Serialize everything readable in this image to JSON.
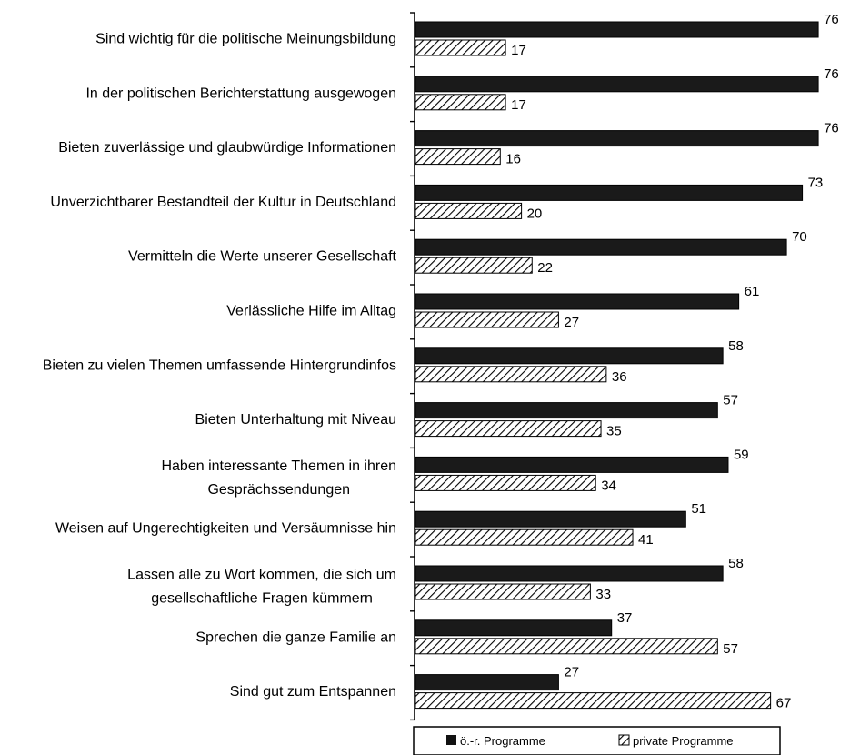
{
  "chart_data": {
    "type": "bar",
    "orientation": "horizontal",
    "categories": [
      [
        "Sind wichtig für die politische Meinungsbildung"
      ],
      [
        "In der politischen Berichterstattung ausgewogen"
      ],
      [
        "Bieten zuverlässige und glaubwürdige Informationen"
      ],
      [
        "Unverzichtbarer Bestandteil der Kultur in Deutschland"
      ],
      [
        "Vermitteln die Werte unserer Gesellschaft"
      ],
      [
        "Verlässliche Hilfe im Alltag"
      ],
      [
        "Bieten zu vielen Themen umfassende Hintergrundinfos"
      ],
      [
        "Bieten Unterhaltung mit Niveau"
      ],
      [
        "Haben interessante Themen in ihren",
        "Gesprächssendungen"
      ],
      [
        "Weisen auf Ungerechtigkeiten und Versäumnisse hin"
      ],
      [
        "Lassen alle zu Wort kommen, die sich um",
        "gesellschaftliche Fragen kümmern"
      ],
      [
        "Sprechen die ganze Familie an"
      ],
      [
        "Sind gut zum Entspannen"
      ]
    ],
    "series": [
      {
        "name": "ö.-r. Programme",
        "pattern": "solid",
        "color": "#1a1a1a",
        "values": [
          76,
          76,
          76,
          73,
          70,
          61,
          58,
          57,
          59,
          51,
          58,
          37,
          27
        ]
      },
      {
        "name": "private Programme",
        "pattern": "hatched",
        "color": "#000000",
        "values": [
          17,
          17,
          16,
          20,
          22,
          27,
          36,
          35,
          34,
          41,
          33,
          57,
          67
        ]
      }
    ],
    "xlim": [
      0,
      80
    ],
    "grid": false,
    "legend_position": "bottom"
  }
}
